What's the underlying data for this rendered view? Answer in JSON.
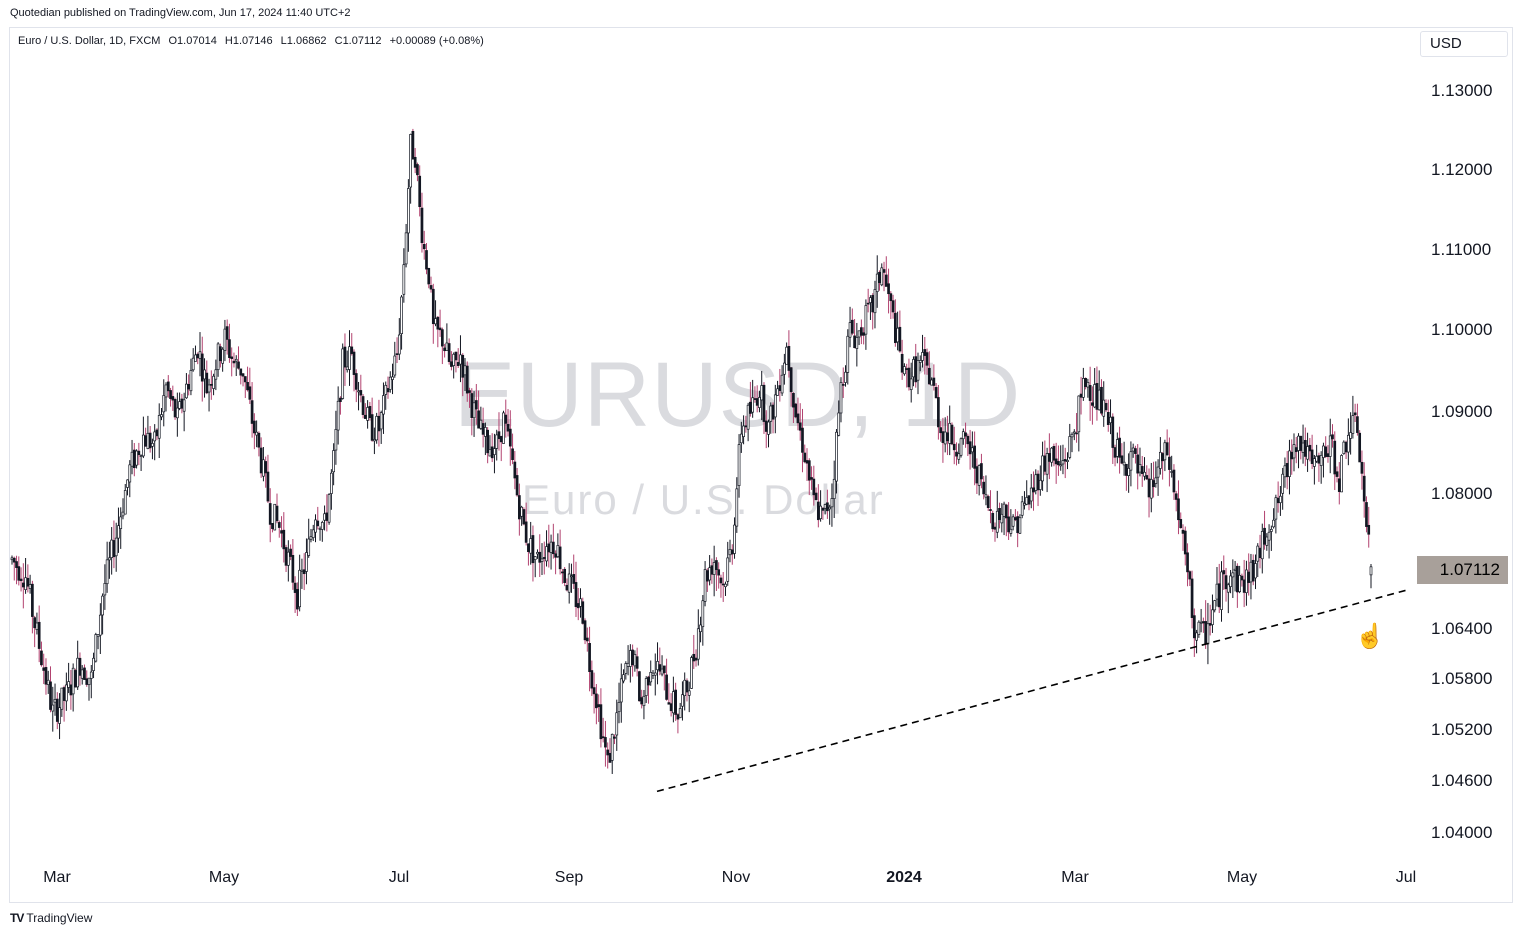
{
  "header": {
    "published": "Quotedian published on TradingView.com, Jun 17, 2024 11:40 UTC+2",
    "symbol": "Euro / U.S. Dollar, 1D, FXCM",
    "open": "O1.07014",
    "high": "H1.07146",
    "low": "L1.06862",
    "close": "C1.07112",
    "change": "+0.00089 (+0.08%)",
    "currency": "USD"
  },
  "watermark": {
    "title": "EURUSD, 1D",
    "subtitle": "Euro / U.S. Dollar"
  },
  "last_price_label": "1.07112",
  "footer": {
    "brand": "TradingView"
  },
  "colors": {
    "up": "#ffffff",
    "down": "#131722",
    "wick_up": "#131722",
    "wick_down": "#b2426f",
    "price_tag": "#a8a09a"
  },
  "chart_data": {
    "type": "candlestick",
    "title": "EURUSD, 1D",
    "x_ticks": [
      {
        "label": "Mar",
        "bold": false
      },
      {
        "label": "May",
        "bold": false
      },
      {
        "label": "Jul",
        "bold": false
      },
      {
        "label": "Sep",
        "bold": false
      },
      {
        "label": "Nov",
        "bold": false
      },
      {
        "label": "2024",
        "bold": true
      },
      {
        "label": "Mar",
        "bold": false
      },
      {
        "label": "May",
        "bold": false
      },
      {
        "label": "Jul",
        "bold": false
      }
    ],
    "y_ticks": [
      "1.13000",
      "1.12000",
      "1.11000",
      "1.10000",
      "1.09000",
      "1.08000",
      "1.06400",
      "1.05800",
      "1.05200",
      "1.04600",
      "1.04000"
    ],
    "price_axis": "non-linear (compressed below 1.0700)",
    "last_close": 1.07112,
    "trendline": {
      "style": "dashed",
      "from": {
        "date": "2023-10-03",
        "price": 1.0448
      },
      "to": {
        "date": "2024-06-30",
        "price": 1.0685
      }
    },
    "path_points": [
      [
        0,
        1.072
      ],
      [
        6,
        1.07
      ],
      [
        12,
        1.062
      ],
      [
        18,
        1.054
      ],
      [
        24,
        1.056
      ],
      [
        30,
        1.06
      ],
      [
        35,
        1.058
      ],
      [
        40,
        1.068
      ],
      [
        46,
        1.075
      ],
      [
        52,
        1.083
      ],
      [
        58,
        1.087
      ],
      [
        63,
        1.086
      ],
      [
        68,
        1.093
      ],
      [
        73,
        1.089
      ],
      [
        78,
        1.094
      ],
      [
        82,
        1.098
      ],
      [
        86,
        1.093
      ],
      [
        90,
        1.096
      ],
      [
        94,
        1.099
      ],
      [
        98,
        1.096
      ],
      [
        102,
        1.095
      ],
      [
        106,
        1.089
      ],
      [
        110,
        1.084
      ],
      [
        114,
        1.078
      ],
      [
        118,
        1.076
      ],
      [
        122,
        1.072
      ],
      [
        126,
        1.068
      ],
      [
        130,
        1.072
      ],
      [
        134,
        1.078
      ],
      [
        138,
        1.076
      ],
      [
        142,
        1.084
      ],
      [
        146,
        1.096
      ],
      [
        150,
        1.097
      ],
      [
        154,
        1.092
      ],
      [
        158,
        1.088
      ],
      [
        162,
        1.088
      ],
      [
        166,
        1.093
      ],
      [
        170,
        1.097
      ],
      [
        172,
        1.104
      ],
      [
        174,
        1.113
      ],
      [
        176,
        1.123
      ],
      [
        178,
        1.122
      ],
      [
        180,
        1.115
      ],
      [
        182,
        1.11
      ],
      [
        184,
        1.107
      ],
      [
        186,
        1.1
      ],
      [
        190,
        1.099
      ],
      [
        194,
        1.095
      ],
      [
        198,
        1.097
      ],
      [
        202,
        1.092
      ],
      [
        206,
        1.088
      ],
      [
        210,
        1.086
      ],
      [
        214,
        1.086
      ],
      [
        217,
        1.089
      ],
      [
        220,
        1.085
      ],
      [
        223,
        1.08
      ],
      [
        226,
        1.076
      ],
      [
        228,
        1.074
      ],
      [
        232,
        1.072
      ],
      [
        236,
        1.074
      ],
      [
        240,
        1.074
      ],
      [
        244,
        1.07
      ],
      [
        248,
        1.068
      ],
      [
        252,
        1.066
      ],
      [
        255,
        1.06
      ],
      [
        258,
        1.056
      ],
      [
        261,
        1.051
      ],
      [
        263,
        1.048
      ],
      [
        266,
        1.052
      ],
      [
        270,
        1.058
      ],
      [
        274,
        1.061
      ],
      [
        278,
        1.055
      ],
      [
        282,
        1.06
      ],
      [
        286,
        1.059
      ],
      [
        290,
        1.056
      ],
      [
        294,
        1.054
      ],
      [
        298,
        1.057
      ],
      [
        302,
        1.062
      ],
      [
        306,
        1.07
      ],
      [
        310,
        1.072
      ],
      [
        314,
        1.069
      ],
      [
        318,
        1.074
      ],
      [
        322,
        1.088
      ],
      [
        326,
        1.09
      ],
      [
        330,
        1.093
      ],
      [
        334,
        1.088
      ],
      [
        338,
        1.093
      ],
      [
        342,
        1.098
      ],
      [
        344,
        1.094
      ],
      [
        346,
        1.09
      ],
      [
        350,
        1.085
      ],
      [
        354,
        1.079
      ],
      [
        358,
        1.077
      ],
      [
        362,
        1.08
      ],
      [
        366,
        1.093
      ],
      [
        370,
        1.1
      ],
      [
        373,
        1.099
      ],
      [
        376,
        1.101
      ],
      [
        380,
        1.103
      ],
      [
        384,
        1.108
      ],
      [
        387,
        1.104
      ],
      [
        390,
        1.1
      ],
      [
        394,
        1.094
      ],
      [
        398,
        1.095
      ],
      [
        402,
        1.096
      ],
      [
        406,
        1.094
      ],
      [
        410,
        1.088
      ],
      [
        414,
        1.087
      ],
      [
        418,
        1.086
      ],
      [
        422,
        1.086
      ],
      [
        426,
        1.083
      ],
      [
        430,
        1.079
      ],
      [
        434,
        1.077
      ],
      [
        438,
        1.078
      ],
      [
        442,
        1.076
      ],
      [
        446,
        1.078
      ],
      [
        450,
        1.08
      ],
      [
        454,
        1.083
      ],
      [
        458,
        1.085
      ],
      [
        462,
        1.083
      ],
      [
        466,
        1.085
      ],
      [
        470,
        1.089
      ],
      [
        474,
        1.094
      ],
      [
        478,
        1.092
      ],
      [
        482,
        1.09
      ],
      [
        486,
        1.087
      ],
      [
        490,
        1.083
      ],
      [
        494,
        1.085
      ],
      [
        498,
        1.082
      ],
      [
        502,
        1.08
      ],
      [
        506,
        1.083
      ],
      [
        510,
        1.085
      ],
      [
        514,
        1.079
      ],
      [
        518,
        1.072
      ],
      [
        522,
        1.064
      ],
      [
        526,
        1.063
      ],
      [
        530,
        1.066
      ],
      [
        534,
        1.069
      ],
      [
        538,
        1.071
      ],
      [
        542,
        1.069
      ],
      [
        546,
        1.07
      ],
      [
        550,
        1.072
      ],
      [
        554,
        1.076
      ],
      [
        558,
        1.078
      ],
      [
        562,
        1.082
      ],
      [
        566,
        1.087
      ],
      [
        570,
        1.086
      ],
      [
        574,
        1.083
      ],
      [
        578,
        1.084
      ],
      [
        582,
        1.086
      ],
      [
        586,
        1.082
      ],
      [
        590,
        1.088
      ],
      [
        594,
        1.088
      ],
      [
        596,
        1.082
      ],
      [
        598,
        1.076
      ],
      [
        600,
        1.071
      ]
    ]
  }
}
